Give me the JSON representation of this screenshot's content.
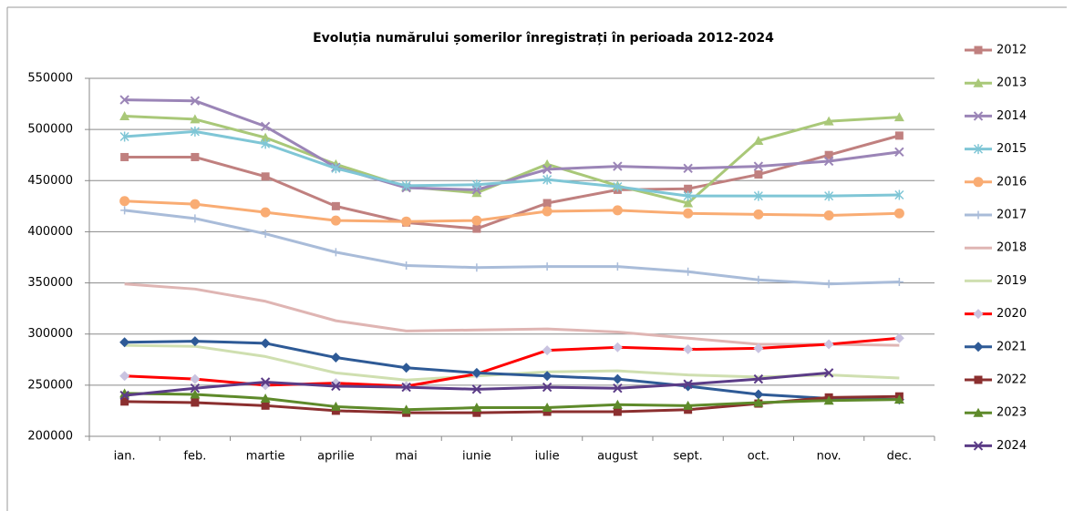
{
  "chart_data": {
    "type": "line",
    "title": "Evoluția numărului  șomerilor înregistrați în perioada 2012-2024",
    "categories": [
      "ian.",
      "feb.",
      "martie",
      "aprilie",
      "mai",
      "iunie",
      "iulie",
      "august",
      "sept.",
      "oct.",
      "nov.",
      "dec."
    ],
    "ylim": [
      200000,
      550000
    ],
    "yticks": [
      200000,
      250000,
      300000,
      350000,
      400000,
      450000,
      500000,
      550000
    ],
    "grid": true,
    "legend": "right",
    "series": [
      {
        "name": "2012",
        "color": "#c0807f",
        "marker": "square",
        "values": [
          473000,
          473000,
          454000,
          425000,
          409000,
          403000,
          428000,
          441000,
          442000,
          456000,
          475000,
          494000
        ]
      },
      {
        "name": "2013",
        "color": "#a9c878",
        "marker": "triangle",
        "values": [
          513000,
          510000,
          492000,
          466000,
          444000,
          438000,
          466000,
          445000,
          428000,
          489000,
          508000,
          512000
        ]
      },
      {
        "name": "2014",
        "color": "#9b85b7",
        "marker": "x",
        "values": [
          529000,
          528000,
          503000,
          463000,
          443000,
          441000,
          461000,
          464000,
          462000,
          464000,
          469000,
          478000
        ]
      },
      {
        "name": "2015",
        "color": "#7fc6d6",
        "marker": "star",
        "values": [
          493000,
          498000,
          486000,
          462000,
          445000,
          446000,
          451000,
          444000,
          435000,
          435000,
          435000,
          436000
        ]
      },
      {
        "name": "2016",
        "color": "#f9ac73",
        "marker": "circle",
        "values": [
          430000,
          427000,
          419000,
          411000,
          410000,
          411000,
          420000,
          421000,
          418000,
          417000,
          416000,
          418000
        ]
      },
      {
        "name": "2017",
        "color": "#a9bcd9",
        "marker": "plus",
        "values": [
          421000,
          413000,
          398000,
          380000,
          367000,
          365000,
          366000,
          366000,
          361000,
          353000,
          349000,
          351000
        ]
      },
      {
        "name": "2018",
        "color": "#dfb5b3",
        "marker": "none",
        "values": [
          349000,
          344000,
          332000,
          313000,
          303000,
          304000,
          305000,
          302000,
          296000,
          290000,
          290000,
          289000
        ]
      },
      {
        "name": "2019",
        "color": "#cfdfb0",
        "marker": "none",
        "values": [
          289000,
          288000,
          278000,
          262000,
          255000,
          259000,
          263000,
          264000,
          260000,
          258000,
          260000,
          257000
        ]
      },
      {
        "name": "2020",
        "color": "#ff0000",
        "marker": "diamond-light",
        "values": [
          259000,
          256000,
          250000,
          252000,
          249000,
          261000,
          284000,
          287000,
          285000,
          286000,
          290000,
          296000
        ]
      },
      {
        "name": "2021",
        "color": "#2e5a96",
        "marker": "diamond",
        "values": [
          292000,
          293000,
          291000,
          277000,
          267000,
          262000,
          259000,
          256000,
          249000,
          241000,
          237000,
          236000
        ]
      },
      {
        "name": "2022",
        "color": "#8b2f2f",
        "marker": "square",
        "values": [
          234000,
          233000,
          230000,
          225000,
          223000,
          223000,
          224000,
          224000,
          226000,
          232000,
          238000,
          239000
        ]
      },
      {
        "name": "2023",
        "color": "#5e8a2a",
        "marker": "triangle",
        "values": [
          242000,
          241000,
          237000,
          229000,
          226000,
          228000,
          228000,
          231000,
          230000,
          233000,
          235000,
          236000
        ]
      },
      {
        "name": "2024",
        "color": "#5b3c87",
        "marker": "x",
        "values": [
          240000,
          247000,
          253000,
          249000,
          248000,
          246000,
          248000,
          247000,
          251000,
          256000,
          262000,
          null
        ]
      }
    ]
  }
}
